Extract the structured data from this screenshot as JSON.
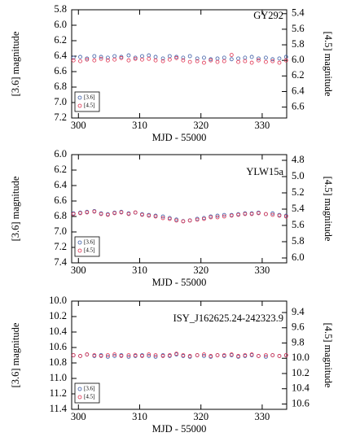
{
  "chart_data": [
    {
      "type": "scatter",
      "title": "GY292",
      "x": [
        299.2,
        300.3,
        301.4,
        302.6,
        303.7,
        304.8,
        305.9,
        307.0,
        308.2,
        309.3,
        310.4,
        311.5,
        312.6,
        313.8,
        314.9,
        316.0,
        317.1,
        318.2,
        319.4,
        320.5,
        321.6,
        322.7,
        323.8,
        325.0,
        326.1,
        327.2,
        328.3,
        329.4,
        330.6,
        331.7,
        332.8,
        333.9
      ],
      "series": [
        {
          "name": "[3.6]",
          "color": "#3b5ba5",
          "values": [
            6.42,
            6.41,
            6.43,
            6.4,
            6.41,
            6.42,
            6.4,
            6.41,
            6.39,
            6.42,
            6.4,
            6.39,
            6.41,
            6.43,
            6.4,
            6.41,
            6.42,
            6.4,
            6.43,
            6.42,
            6.44,
            6.43,
            6.42,
            6.44,
            6.43,
            6.42,
            6.41,
            6.43,
            6.42,
            6.44,
            6.43,
            6.41
          ]
        },
        {
          "name": "[4.5]",
          "color": "#e0304f",
          "axis": "y2",
          "values": [
            6.0,
            6.01,
            5.99,
            6.0,
            5.98,
            6.0,
            5.99,
            5.97,
            6.0,
            5.98,
            5.99,
            5.98,
            6.0,
            6.01,
            5.99,
            5.97,
            6.0,
            6.02,
            6.01,
            6.03,
            6.0,
            6.02,
            6.01,
            5.93,
            6.02,
            6.01,
            6.03,
            6.0,
            6.02,
            6.01,
            6.03,
            6.0
          ]
        }
      ],
      "xlim": [
        298.9,
        334
      ],
      "xticks": [
        300,
        310,
        320,
        330
      ],
      "ylim": [
        5.8,
        7.2
      ],
      "yticks": [
        5.8,
        {
          "value": 6,
          "label": "6.0"
        },
        6.2,
        6.4,
        6.6,
        6.8,
        {
          "value": 7,
          "label": "7.0"
        },
        7.2
      ],
      "y2lim": [
        5.35,
        6.74
      ],
      "y2ticks": [
        5.4,
        5.6,
        5.8,
        {
          "value": 6,
          "label": "6.0"
        },
        6.2,
        6.4,
        6.6
      ],
      "inverted": true,
      "xlabel": "MJD - 55000",
      "ylabel": "[3.6] magnitude",
      "y2label": "[4.5] magnitude"
    },
    {
      "type": "scatter",
      "title": "YLW15a",
      "x": [
        299.2,
        300.3,
        301.4,
        302.6,
        303.7,
        304.8,
        305.9,
        307.0,
        308.2,
        309.3,
        310.4,
        311.5,
        312.6,
        313.8,
        314.9,
        316.0,
        317.1,
        318.2,
        319.4,
        320.5,
        321.6,
        322.7,
        323.8,
        325.0,
        326.1,
        327.2,
        328.3,
        329.4,
        330.6,
        331.7,
        332.8,
        333.9
      ],
      "series": [
        {
          "name": "[3.6]",
          "color": "#3b5ba5",
          "values": [
            6.76,
            6.75,
            6.74,
            6.73,
            6.76,
            6.77,
            6.75,
            6.74,
            6.76,
            6.75,
            6.77,
            6.78,
            6.79,
            6.8,
            6.82,
            6.84,
            6.86,
            6.85,
            6.83,
            6.82,
            6.8,
            6.79,
            6.78,
            6.78,
            6.77,
            6.76,
            6.76,
            6.75,
            6.77,
            6.76,
            6.78,
            6.79
          ]
        },
        {
          "name": "[4.5]",
          "color": "#e0304f",
          "axis": "y2",
          "values": [
            5.46,
            5.45,
            5.44,
            5.43,
            5.46,
            5.47,
            5.45,
            5.44,
            5.46,
            5.44,
            5.47,
            5.48,
            5.49,
            5.51,
            5.52,
            5.54,
            5.55,
            5.54,
            5.53,
            5.52,
            5.5,
            5.5,
            5.49,
            5.48,
            5.47,
            5.46,
            5.46,
            5.45,
            5.46,
            5.47,
            5.48,
            5.49
          ]
        }
      ],
      "xlim": [
        298.9,
        334
      ],
      "xticks": [
        300,
        310,
        320,
        330
      ],
      "ylim": [
        6.0,
        7.4
      ],
      "yticks": [
        {
          "value": 6,
          "label": "6.0"
        },
        6.2,
        6.4,
        6.6,
        6.8,
        {
          "value": 7,
          "label": "7.0"
        },
        7.2,
        7.4
      ],
      "y2lim": [
        4.73,
        6.06
      ],
      "y2ticks": [
        4.8,
        {
          "value": 5,
          "label": "5.0"
        },
        5.2,
        5.4,
        5.6,
        5.8,
        {
          "value": 6,
          "label": "6.0"
        }
      ],
      "inverted": true,
      "xlabel": "MJD - 55000",
      "ylabel": "[3.6] magnitude",
      "y2label": "[4.5] magnitude"
    },
    {
      "type": "scatter",
      "title": "ISY_J162625.24-242323.9",
      "x": [
        299.2,
        300.3,
        301.4,
        302.6,
        303.7,
        304.8,
        305.9,
        307.0,
        308.2,
        309.3,
        310.4,
        311.5,
        312.6,
        313.8,
        314.9,
        316.0,
        317.1,
        318.2,
        319.4,
        320.5,
        321.6,
        322.7,
        323.8,
        325.0,
        326.1,
        327.2,
        328.3,
        329.4,
        330.6,
        331.7,
        332.8,
        333.9
      ],
      "series": [
        {
          "name": "[3.6]",
          "color": "#3b5ba5",
          "values": [
            10.7,
            10.71,
            10.69,
            10.71,
            10.7,
            10.72,
            10.71,
            10.7,
            10.72,
            10.71,
            10.7,
            10.71,
            10.72,
            10.7,
            10.71,
            10.69,
            10.71,
            10.72,
            10.7,
            10.71,
            10.72,
            10.7,
            10.71,
            10.7,
            10.72,
            10.71,
            10.7,
            10.71,
            10.72,
            10.7,
            10.71,
            10.7
          ]
        },
        {
          "name": "[4.5]",
          "color": "#e0304f",
          "axis": "y2",
          "values": [
            9.96,
            9.97,
            9.95,
            9.96,
            9.97,
            9.96,
            9.95,
            9.97,
            9.96,
            9.96,
            9.97,
            9.95,
            9.96,
            9.97,
            9.96,
            9.94,
            9.96,
            9.97,
            9.96,
            9.95,
            9.97,
            9.96,
            9.96,
            9.95,
            9.97,
            9.96,
            9.95,
            9.97,
            9.96,
            9.96,
            9.97,
            9.96
          ]
        }
      ],
      "xlim": [
        298.9,
        334
      ],
      "xticks": [
        300,
        310,
        320,
        330
      ],
      "ylim": [
        10.0,
        11.4
      ],
      "yticks": [
        {
          "value": 10,
          "label": "10.0"
        },
        10.2,
        10.4,
        10.6,
        10.8,
        {
          "value": 11,
          "label": "11.0"
        },
        11.2,
        11.4
      ],
      "y2lim": [
        9.25,
        10.67
      ],
      "y2ticks": [
        9.4,
        9.6,
        9.8,
        {
          "value": 10,
          "label": "10.0"
        },
        10.2,
        10.4,
        10.6
      ],
      "inverted": true,
      "xlabel": "MJD - 55000",
      "ylabel": "[3.6] magnitude",
      "y2label": "[4.5] magnitude"
    }
  ]
}
